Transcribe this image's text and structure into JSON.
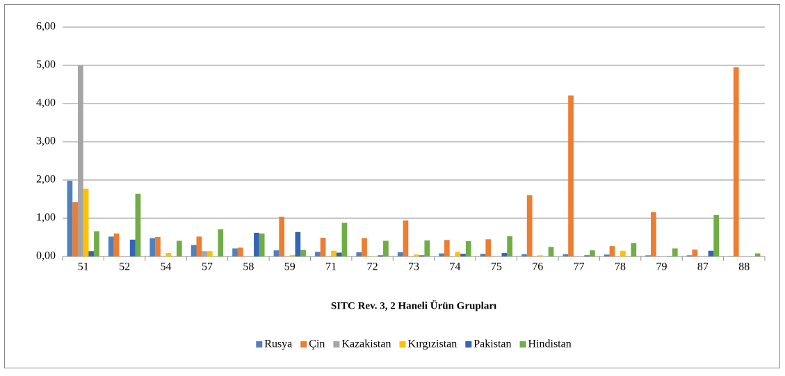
{
  "chart_data": {
    "type": "bar",
    "x_label": "SITC Rev. 3, 2 Haneli Ürün Grupları",
    "categories": [
      "51",
      "52",
      "54",
      "57",
      "58",
      "59",
      "71",
      "72",
      "73",
      "74",
      "75",
      "76",
      "77",
      "78",
      "79",
      "87",
      "88"
    ],
    "series": [
      {
        "name": "Rusya",
        "color": "#4f81bd",
        "values": [
          1.98,
          0.52,
          0.48,
          0.3,
          0.21,
          0.16,
          0.12,
          0.11,
          0.11,
          0.08,
          0.07,
          0.06,
          0.06,
          0.05,
          0.03,
          0.03,
          0.01
        ]
      },
      {
        "name": "Çin",
        "color": "#ed7d31",
        "values": [
          1.42,
          0.6,
          0.51,
          0.52,
          0.23,
          1.04,
          0.49,
          0.48,
          0.94,
          0.43,
          0.45,
          1.6,
          4.21,
          0.27,
          1.16,
          0.18,
          4.95
        ]
      },
      {
        "name": "Kazakistan",
        "color": "#a5a5a5",
        "values": [
          5.0,
          0,
          0,
          0.14,
          0,
          0,
          0,
          0,
          0,
          0,
          0,
          0,
          0,
          0,
          0,
          0,
          0
        ]
      },
      {
        "name": "Kırgızistan",
        "color": "#ffc000",
        "values": [
          1.77,
          0,
          0.09,
          0.14,
          0,
          0.04,
          0.15,
          0.01,
          0.05,
          0.11,
          0,
          0.03,
          0,
          0.15,
          0,
          0,
          0
        ]
      },
      {
        "name": "Pakistan",
        "color": "#3563b5",
        "values": [
          0.14,
          0.44,
          0,
          0,
          0.62,
          0.64,
          0.1,
          0.03,
          0.03,
          0.07,
          0.09,
          0,
          0.03,
          0,
          0.01,
          0.15,
          0
        ]
      },
      {
        "name": "Hindistan",
        "color": "#70ad47",
        "values": [
          0.66,
          1.64,
          0.41,
          0.71,
          0.6,
          0.17,
          0.88,
          0.41,
          0.42,
          0.4,
          0.53,
          0.25,
          0.16,
          0.35,
          0.21,
          1.09,
          0.08
        ]
      }
    ],
    "ylim": [
      0,
      6
    ],
    "yticks": [
      {
        "value": 0,
        "label": "0,00"
      },
      {
        "value": 1,
        "label": "1,00"
      },
      {
        "value": 2,
        "label": "2,00"
      },
      {
        "value": 3,
        "label": "3,00"
      },
      {
        "value": 4,
        "label": "4,00"
      },
      {
        "value": 5,
        "label": "5,00"
      },
      {
        "value": 6,
        "label": "6,00"
      }
    ],
    "grid": true,
    "legend": "bottom"
  }
}
